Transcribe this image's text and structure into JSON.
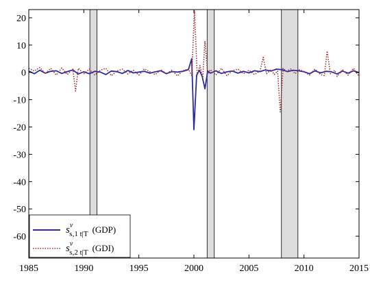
{
  "chart_data": {
    "type": "line",
    "xlim": [
      1985,
      2015
    ],
    "ylim": [
      -68,
      23
    ],
    "xticks": [
      1985,
      1990,
      1995,
      2000,
      2005,
      2010,
      2015
    ],
    "yticks": [
      20,
      10,
      0,
      -10,
      -20,
      -30,
      -40,
      -50,
      -60
    ],
    "xtick_labels": [
      "1985",
      "1990",
      "1995",
      "2000",
      "2005",
      "2010",
      "2015"
    ],
    "ytick_labels": [
      "20",
      "10",
      "0",
      "-10",
      "-20",
      "-30",
      "-40",
      "-50",
      "-60"
    ],
    "grid": false,
    "legend_position": "bottom-left",
    "recessions": [
      {
        "start": 1990.55,
        "end": 1991.2
      },
      {
        "start": 2001.2,
        "end": 2001.85
      },
      {
        "start": 2007.95,
        "end": 2009.45
      }
    ],
    "series": [
      {
        "name_parts": {
          "base": "s",
          "sup": "v",
          "sub": "s,1 t|T",
          "label": "(GDP)"
        },
        "color": "#2a2aa0",
        "style": "solid",
        "x": [
          1985.0,
          1985.5,
          1986.0,
          1986.5,
          1987.0,
          1987.5,
          1988.0,
          1988.5,
          1989.0,
          1989.5,
          1990.0,
          1990.5,
          1991.0,
          1991.5,
          1992.0,
          1992.5,
          1993.0,
          1993.5,
          1994.0,
          1994.5,
          1995.0,
          1995.5,
          1996.0,
          1996.5,
          1997.0,
          1997.5,
          1998.0,
          1998.5,
          1999.0,
          1999.5,
          1999.8,
          2000.0,
          2000.25,
          2000.5,
          2000.75,
          2001.0,
          2001.25,
          2001.5,
          2002.0,
          2002.5,
          2003.0,
          2003.5,
          2004.0,
          2004.5,
          2005.0,
          2005.5,
          2006.0,
          2006.5,
          2007.0,
          2007.5,
          2008.0,
          2008.5,
          2009.0,
          2009.5,
          2010.0,
          2010.5,
          2011.0,
          2011.5,
          2012.0,
          2012.5,
          2013.0,
          2013.5,
          2014.0,
          2014.5,
          2015.0
        ],
        "y": [
          0.5,
          -0.5,
          0.8,
          -0.3,
          0.4,
          0.6,
          -0.4,
          0.3,
          0.9,
          -0.6,
          0.2,
          -0.5,
          0.4,
          0.1,
          -0.8,
          0.5,
          0.3,
          -0.4,
          0.7,
          -0.2,
          0.1,
          0.4,
          -0.3,
          0.2,
          0.6,
          -0.5,
          0.3,
          0.1,
          0.4,
          1.0,
          5.0,
          -21.0,
          -1.0,
          0.8,
          -1.5,
          -6.0,
          0.5,
          -0.3,
          0.6,
          -0.4,
          0.2,
          0.5,
          -0.3,
          0.4,
          -0.2,
          0.6,
          0.3,
          0.9,
          0.5,
          1.2,
          1.0,
          0.3,
          0.8,
          0.6,
          0.2,
          -0.5,
          0.6,
          -0.2,
          0.4,
          0.2,
          -0.6,
          0.5,
          -0.3,
          0.6,
          -0.1
        ]
      },
      {
        "name_parts": {
          "base": "s",
          "sup": "v",
          "sub": "s,2 t|T",
          "label": "(GDI)"
        },
        "color": "#a0302e",
        "style": "dotted",
        "x": [
          1985.0,
          1985.5,
          1986.0,
          1986.5,
          1987.0,
          1987.5,
          1988.0,
          1988.5,
          1989.0,
          1989.25,
          1989.5,
          1990.0,
          1990.5,
          1991.0,
          1991.5,
          1992.0,
          1992.5,
          1993.0,
          1993.5,
          1994.0,
          1994.5,
          1995.0,
          1995.5,
          1996.0,
          1996.5,
          1997.0,
          1997.5,
          1998.0,
          1998.5,
          1999.0,
          1999.5,
          1999.8,
          2000.05,
          2000.3,
          2000.55,
          2000.8,
          2001.0,
          2001.25,
          2001.5,
          2002.0,
          2002.5,
          2003.0,
          2003.5,
          2004.0,
          2004.5,
          2005.0,
          2005.5,
          2006.0,
          2006.3,
          2006.6,
          2007.0,
          2007.3,
          2007.6,
          2007.85,
          2008.1,
          2008.4,
          2008.8,
          2009.2,
          2009.6,
          2010.0,
          2010.5,
          2011.0,
          2011.5,
          2011.85,
          2012.1,
          2012.4,
          2012.8,
          2013.0,
          2013.5,
          2014.0,
          2014.5,
          2015.0
        ],
        "y": [
          1.5,
          0.5,
          1.8,
          -0.5,
          1.5,
          -1.0,
          1.6,
          -0.8,
          1.2,
          -6.8,
          1.5,
          -0.5,
          1.2,
          -1.0,
          0.8,
          1.5,
          -1.2,
          0.5,
          1.2,
          -0.6,
          0.8,
          -1.0,
          1.3,
          0.2,
          -0.8,
          1.0,
          -0.5,
          0.8,
          -1.3,
          0.6,
          1.3,
          -1.2,
          22.5,
          -1.0,
          2.5,
          -2.0,
          11.5,
          -0.5,
          1.0,
          -1.0,
          1.5,
          -1.2,
          0.6,
          1.2,
          -0.5,
          0.8,
          -0.8,
          0.5,
          5.5,
          -0.5,
          1.0,
          -0.8,
          0.5,
          -14.5,
          1.5,
          0.5,
          1.2,
          -0.5,
          1.0,
          0.3,
          -1.0,
          1.2,
          -0.8,
          -1.2,
          7.8,
          -0.5,
          0.8,
          -1.5,
          1.0,
          -1.0,
          1.5,
          -1.5
        ]
      }
    ]
  }
}
